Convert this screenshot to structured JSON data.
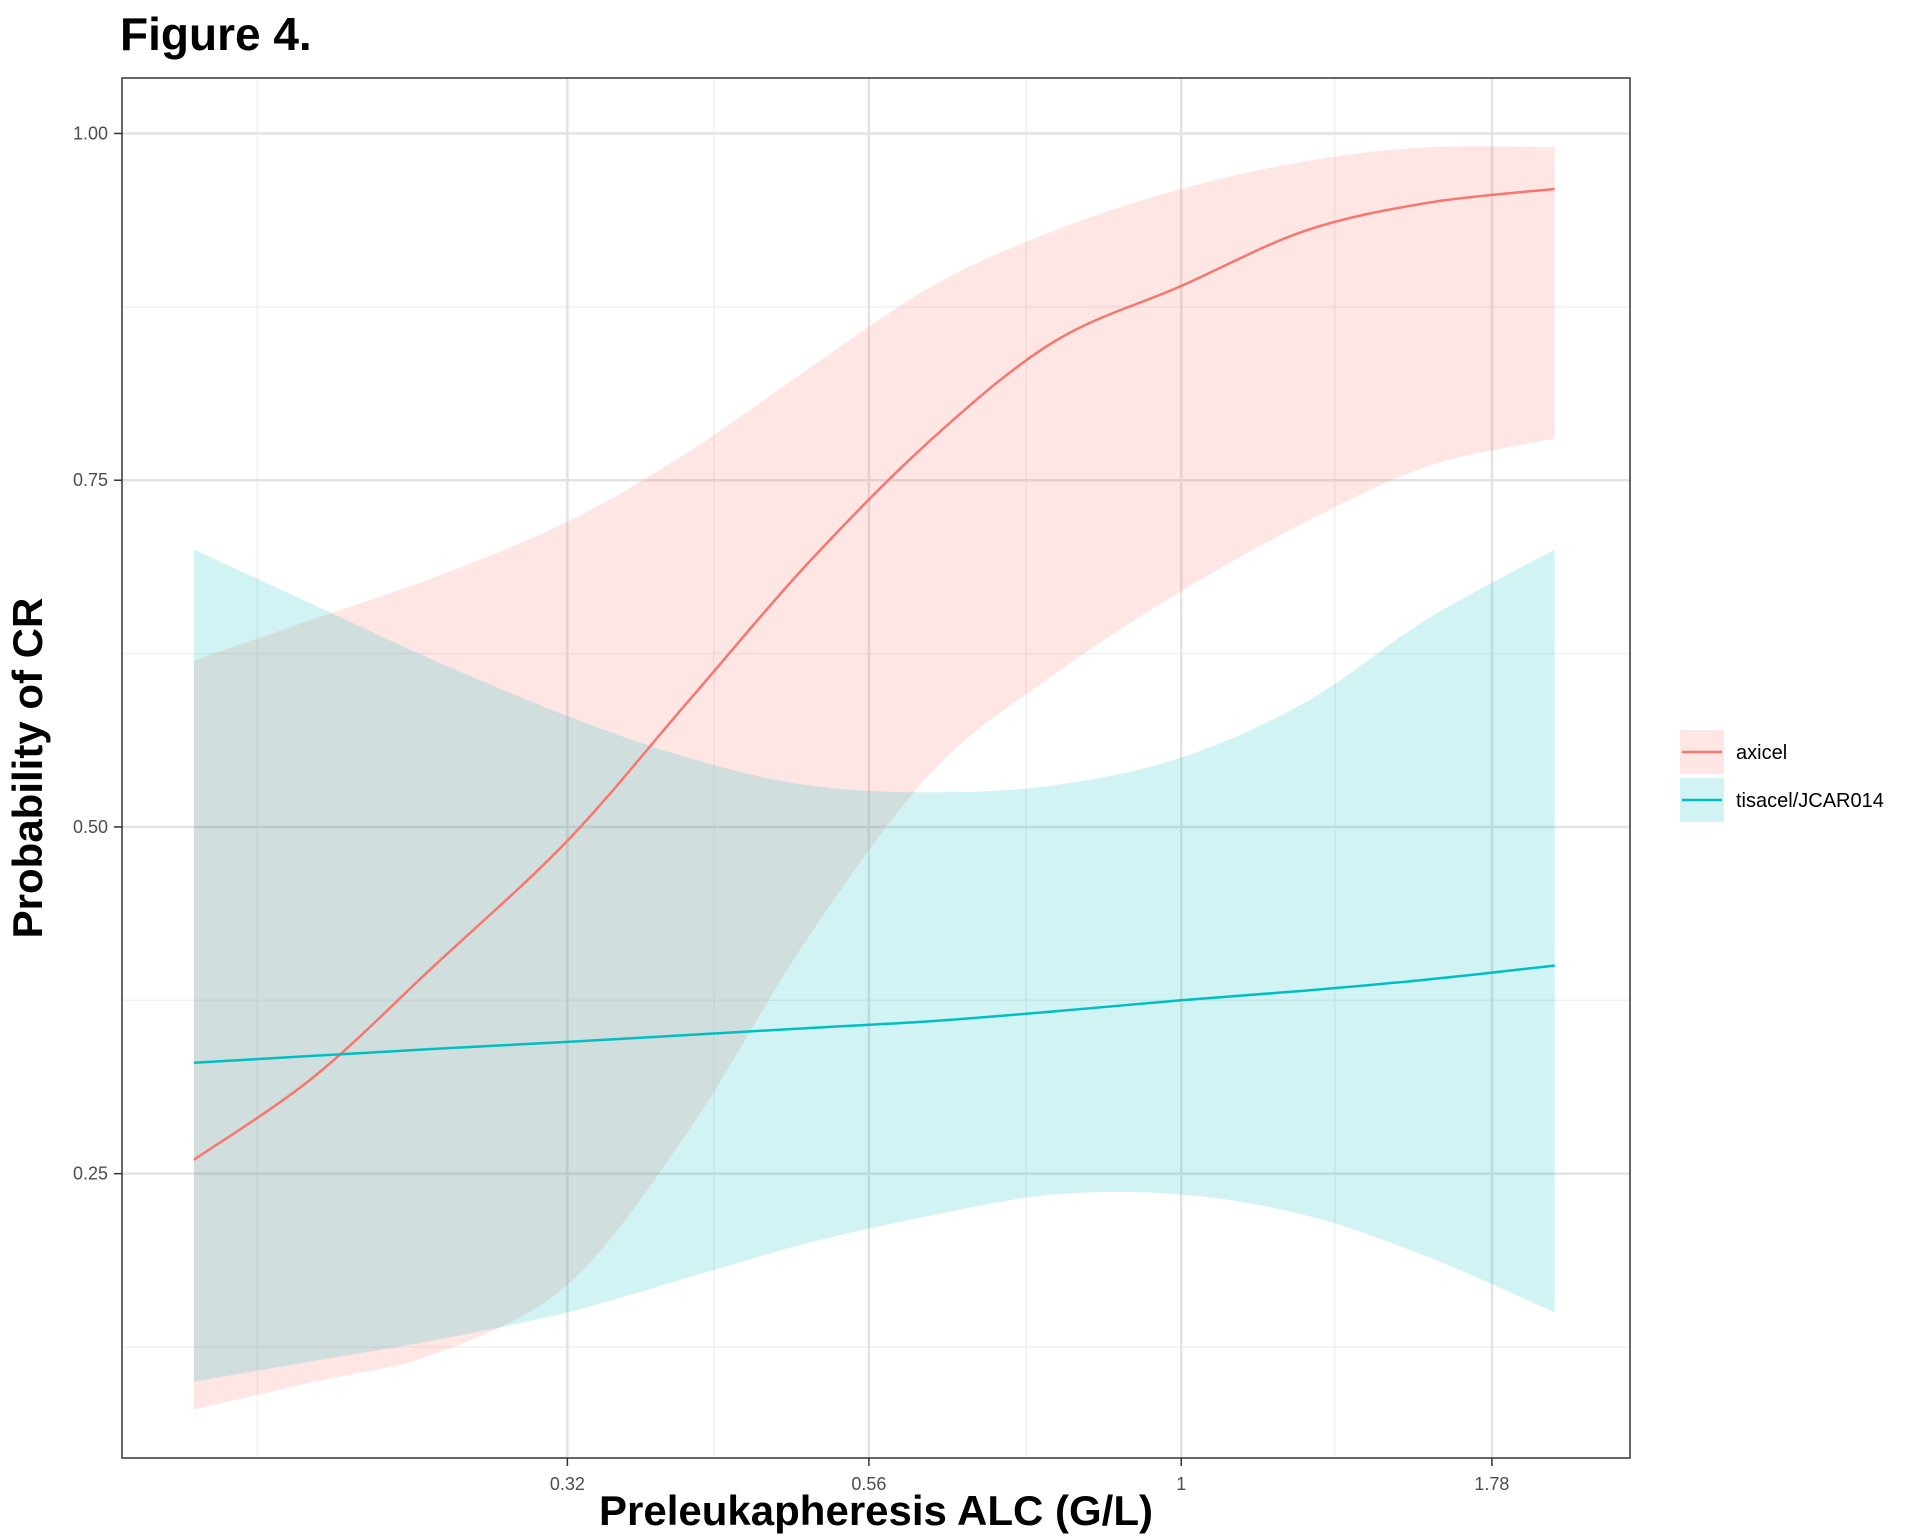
{
  "figure_label": "Figure 4.",
  "chart_data": {
    "type": "line",
    "title": "",
    "xlabel": "Preleukapheresis ALC (G/L)",
    "ylabel": "Probability of CR",
    "x_scale": "log",
    "xlim": [
      0.14,
      2.3
    ],
    "ylim": [
      0.045,
      1.04
    ],
    "x_ticks": [
      0.32,
      0.56,
      1,
      1.78
    ],
    "x_tick_labels": [
      "0.32",
      "0.56",
      "1",
      "1.78"
    ],
    "x_minor_gridlines": [
      0.18,
      0.42,
      0.75,
      1.33
    ],
    "y_ticks": [
      0.25,
      0.5,
      0.75,
      1.0
    ],
    "y_tick_labels": [
      "0.25",
      "0.50",
      "0.75",
      "1.00"
    ],
    "y_minor_gridlines": [
      0.125,
      0.375,
      0.625,
      0.875
    ],
    "grid": true,
    "legend_position": "right",
    "series": [
      {
        "name": "axicel",
        "color": "#F8766D",
        "band_color": "#FDE4E4",
        "x": [
          0.16,
          0.2,
          0.25,
          0.32,
          0.4,
          0.5,
          0.63,
          0.79,
          1.0,
          1.26,
          1.58,
          2.0
        ],
        "y": [
          0.26,
          0.32,
          0.4,
          0.49,
          0.59,
          0.69,
          0.78,
          0.85,
          0.89,
          0.93,
          0.95,
          0.96
        ],
        "lower": [
          0.08,
          0.1,
          0.12,
          0.17,
          0.28,
          0.42,
          0.54,
          0.61,
          0.67,
          0.72,
          0.76,
          0.78
        ],
        "upper": [
          0.62,
          0.65,
          0.68,
          0.72,
          0.77,
          0.83,
          0.89,
          0.93,
          0.96,
          0.98,
          0.99,
          0.99
        ]
      },
      {
        "name": "tisacel/JCAR014",
        "color": "#00BFC4",
        "band_color": "#DCF3F4",
        "x": [
          0.16,
          0.2,
          0.25,
          0.32,
          0.4,
          0.5,
          0.63,
          0.79,
          1.0,
          1.26,
          1.58,
          2.0
        ],
        "y": [
          0.33,
          0.335,
          0.34,
          0.345,
          0.35,
          0.355,
          0.36,
          0.367,
          0.375,
          0.382,
          0.39,
          0.4
        ],
        "lower": [
          0.1,
          0.115,
          0.13,
          0.15,
          0.175,
          0.2,
          0.22,
          0.235,
          0.235,
          0.22,
          0.19,
          0.15
        ],
        "upper": [
          0.7,
          0.66,
          0.62,
          0.58,
          0.55,
          0.53,
          0.525,
          0.53,
          0.55,
          0.59,
          0.65,
          0.7
        ]
      }
    ]
  }
}
